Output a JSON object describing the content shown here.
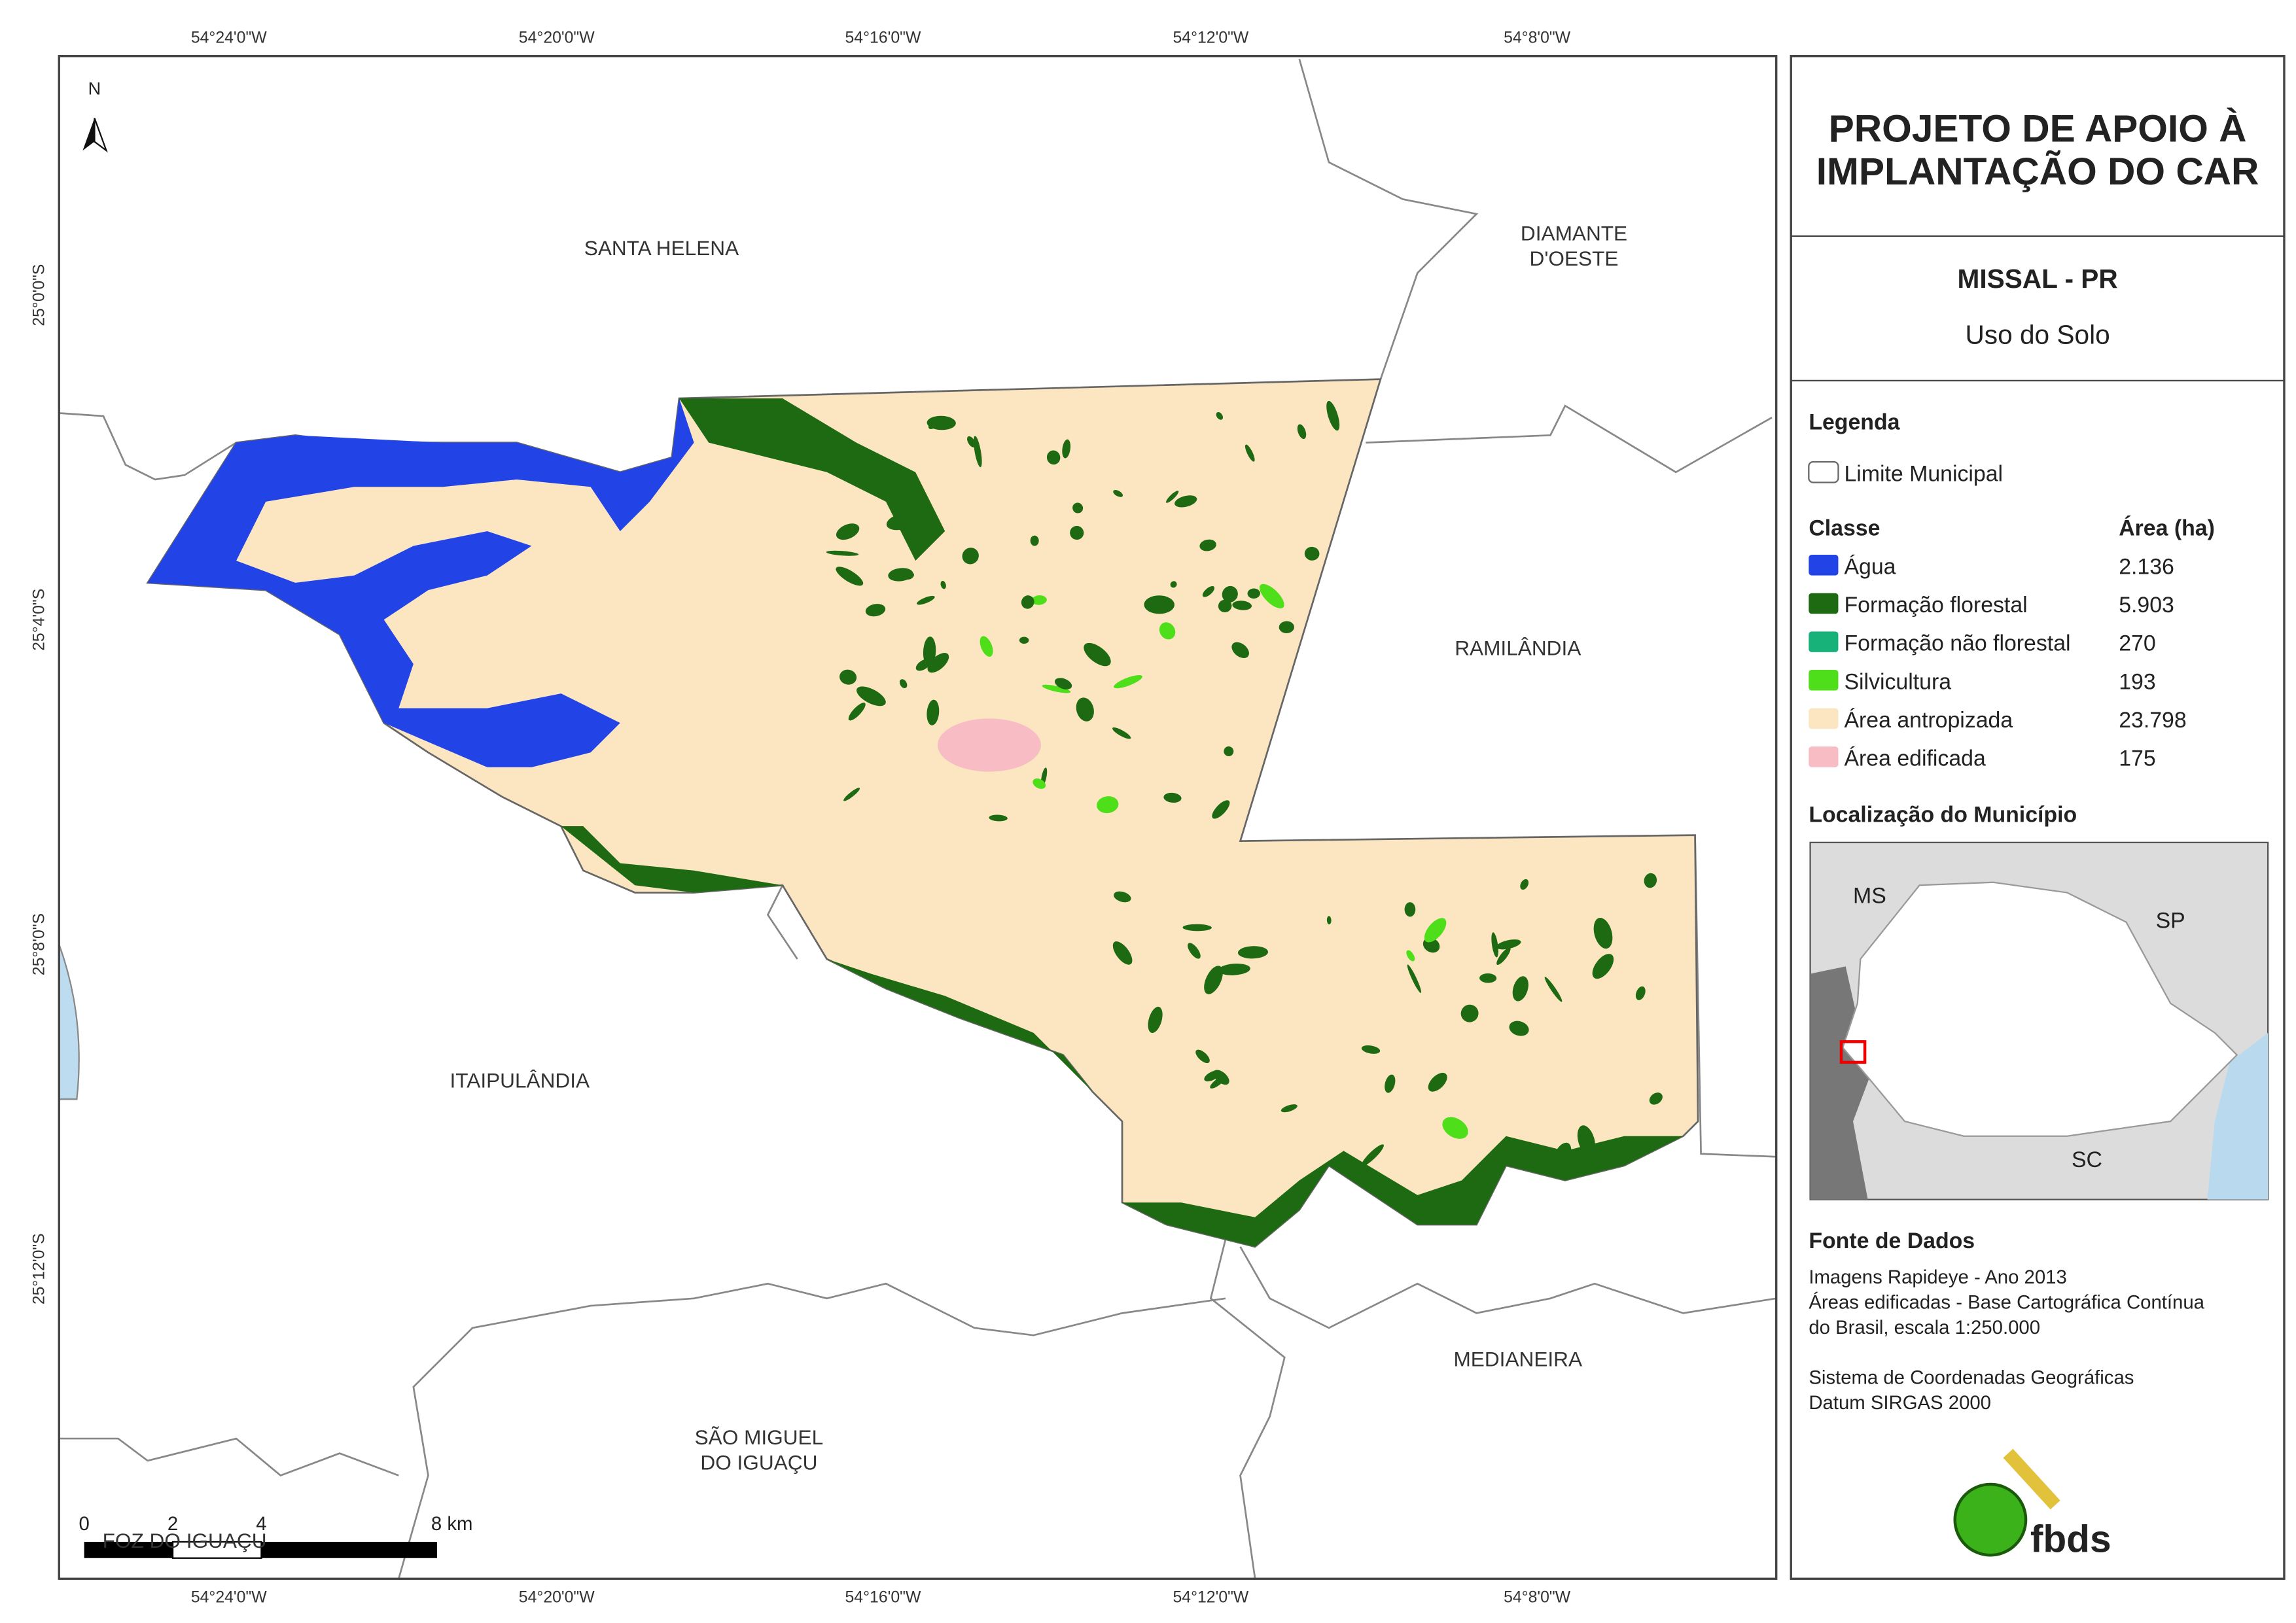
{
  "map": {
    "north": "N",
    "coord_labels": {
      "top": [
        "54°24'0\"W",
        "54°20'0\"W",
        "54°16'0\"W",
        "54°12'0\"W",
        "54°8'0\"W"
      ],
      "bottom": [
        "54°24'0\"W",
        "54°20'0\"W",
        "54°16'0\"W",
        "54°12'0\"W",
        "54°8'0\"W"
      ],
      "left": [
        "25°0'0\"S",
        "25°4'0\"S",
        "25°8'0\"S",
        "25°12'0\"S"
      ]
    },
    "place_labels": [
      {
        "lines": [
          "SANTA HELENA"
        ]
      },
      {
        "lines": [
          "DIAMANTE",
          "D'OESTE"
        ]
      },
      {
        "lines": [
          "RAMILÂNDIA"
        ]
      },
      {
        "lines": [
          "ITAIPULÂNDIA"
        ]
      },
      {
        "lines": [
          "MEDIANEIRA"
        ]
      },
      {
        "lines": [
          "SÃO MIGUEL",
          "DO IGUAÇU"
        ]
      },
      {
        "lines": [
          "FOZ DO IGUAÇU"
        ]
      }
    ],
    "scale_bar": [
      "0",
      "2",
      "4",
      "8 km"
    ]
  },
  "panel": {
    "title": [
      "PROJETO DE APOIO À",
      "IMPLANTAÇÃO DO CAR"
    ],
    "municipality": "MISSAL - PR",
    "subtitle": "Uso do Solo",
    "legend": {
      "heading": "Legenda",
      "boundary": "Limite Municipal",
      "class_header": "Classe",
      "area_header": "Área (ha)",
      "classes": [
        {
          "name": "Água",
          "area": "2.136",
          "color": "#2244e6"
        },
        {
          "name": "Formação florestal",
          "area": "5.903",
          "color": "#1e6a12"
        },
        {
          "name": "Formação não florestal",
          "area": "270",
          "color": "#16b27a"
        },
        {
          "name": "Silvicultura",
          "area": "193",
          "color": "#4fde1a"
        },
        {
          "name": "Área antropizada",
          "area": "23.798",
          "color": "#fbe6c1"
        },
        {
          "name": "Área edificada",
          "area": "175",
          "color": "#f7bcc4"
        }
      ]
    },
    "location": {
      "heading": "Localização do Município",
      "labels": [
        "MS",
        "SP",
        "SC"
      ]
    },
    "sources": {
      "heading": "Fonte de Dados",
      "lines": [
        "Imagens Rapideye - Ano 2013",
        "Áreas edificadas - Base Cartográfica Contínua",
        "do Brasil, escala 1:250.000",
        "Sistema de Coordenadas Geográficas",
        "Datum SIRGAS 2000"
      ]
    },
    "logo": "fbds"
  }
}
